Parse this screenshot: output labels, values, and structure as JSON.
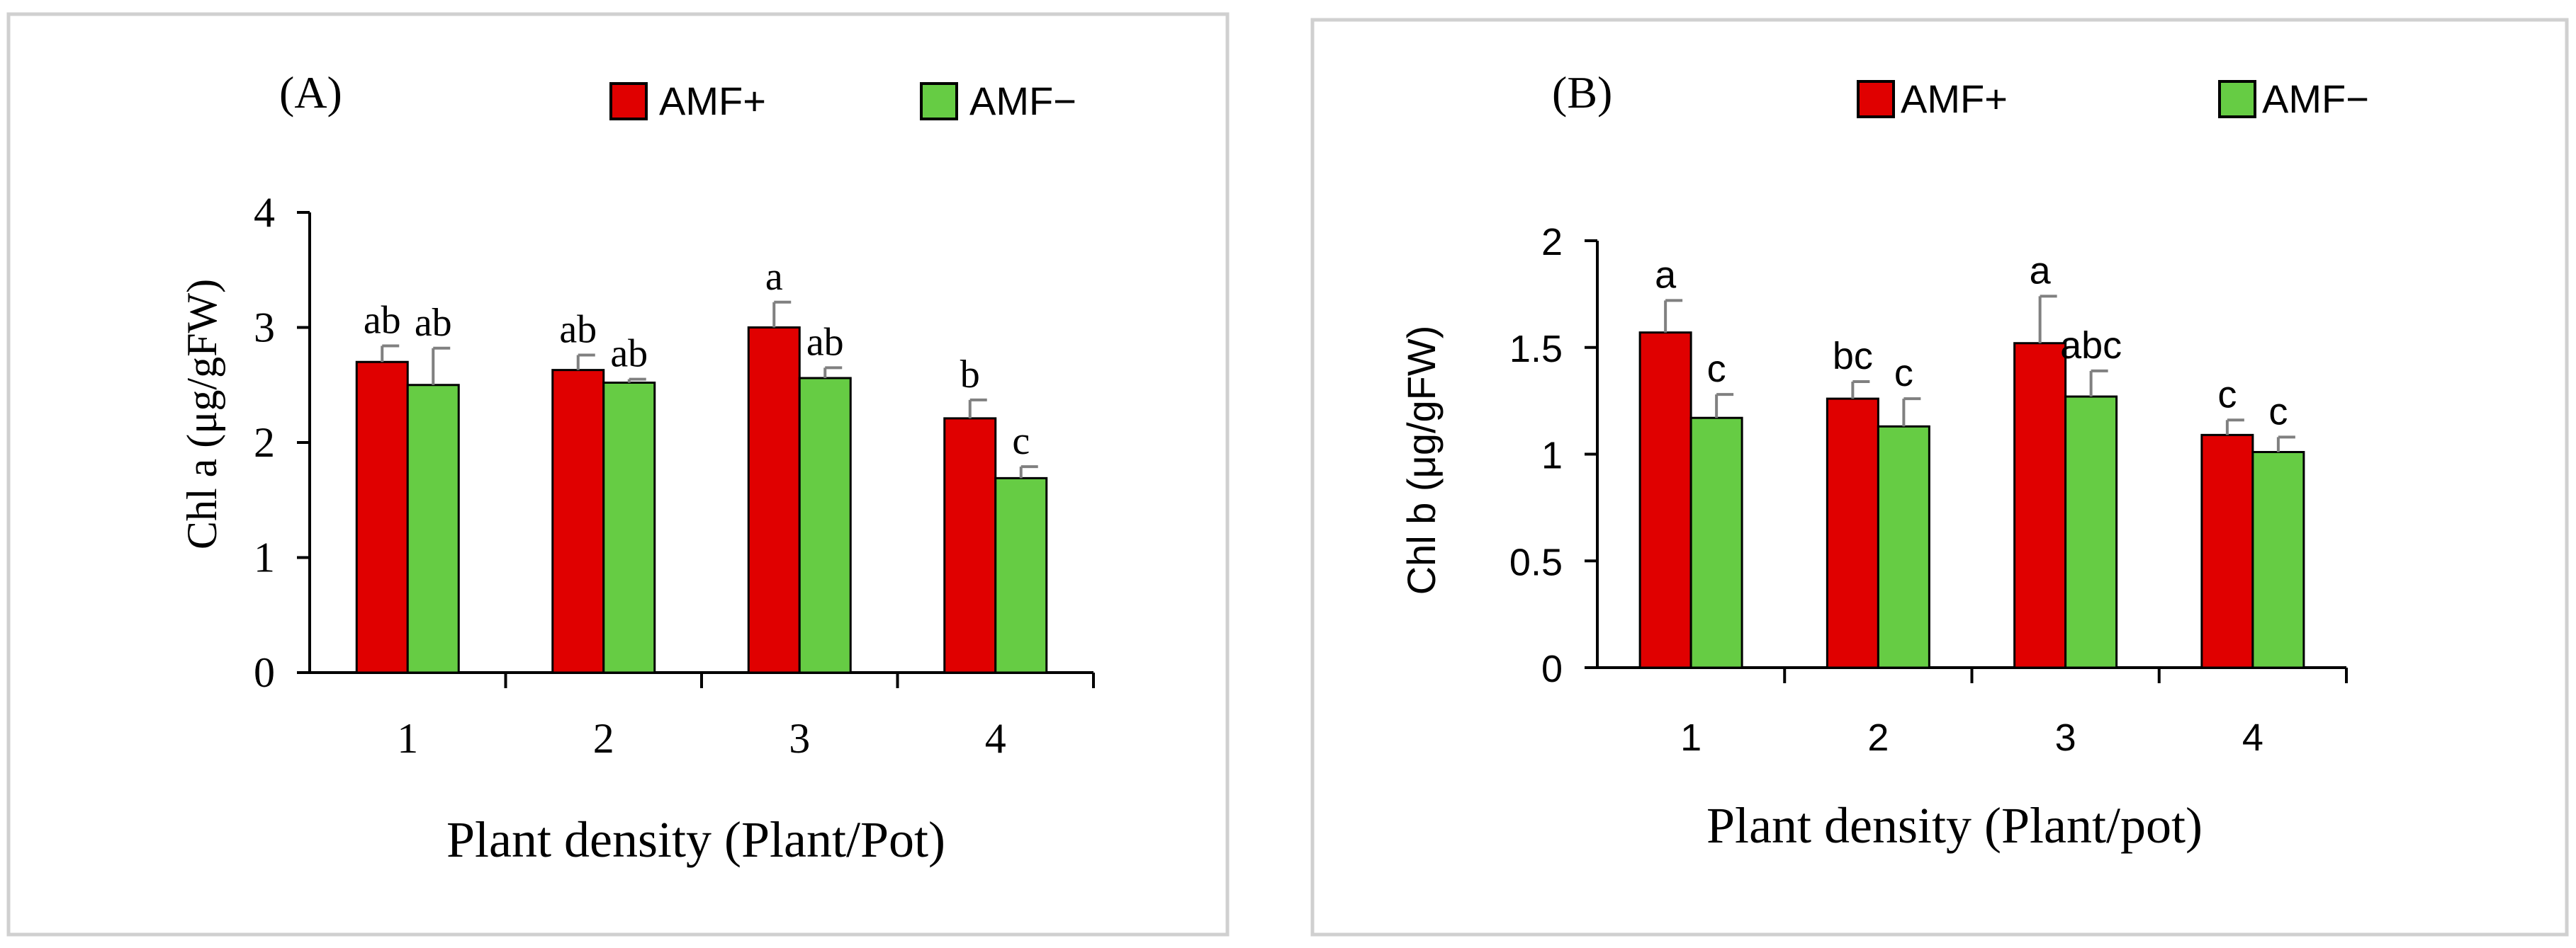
{
  "colors": {
    "amf_plus": "#E00000",
    "amf_minus": "#66CC44",
    "axis": "#000000",
    "error_bar": "#808080",
    "frame": "#D0D0D0"
  },
  "chart_data": [
    {
      "type": "bar",
      "panel_label": "(A)",
      "xlabel": "Plant density (Plant/Pot)",
      "ylabel": "Chl a (μg/gFW)",
      "categories": [
        "1",
        "2",
        "3",
        "4"
      ],
      "ylim": [
        0,
        4
      ],
      "yticks": [
        0,
        1,
        2,
        3,
        4
      ],
      "ytick_labels": [
        "0",
        "1",
        "2",
        "3",
        "4"
      ],
      "series": [
        {
          "name": "AMF+",
          "values": [
            2.7,
            2.63,
            3.0,
            2.21
          ],
          "errors": [
            0.14,
            0.13,
            0.22,
            0.16
          ],
          "letters": [
            "ab",
            "ab",
            "a",
            "b"
          ]
        },
        {
          "name": "AMF−",
          "values": [
            2.5,
            2.52,
            2.56,
            1.69
          ],
          "errors": [
            0.32,
            0.03,
            0.09,
            0.1
          ],
          "letters": [
            "ab",
            "ab",
            "ab",
            "c"
          ]
        }
      ]
    },
    {
      "type": "bar",
      "panel_label": "(B)",
      "xlabel": "Plant density (Plant/pot)",
      "ylabel": "Chl b (μg/gFW)",
      "categories": [
        "1",
        "2",
        "3",
        "4"
      ],
      "ylim": [
        0,
        2
      ],
      "yticks": [
        0,
        0.5,
        1,
        1.5,
        2
      ],
      "ytick_labels": [
        "0",
        "0.5",
        "1",
        "1.5",
        "2"
      ],
      "series": [
        {
          "name": "AMF+",
          "values": [
            1.57,
            1.26,
            1.52,
            1.09
          ],
          "errors": [
            0.15,
            0.08,
            0.22,
            0.07
          ],
          "letters": [
            "a",
            "bc",
            "a",
            "c"
          ]
        },
        {
          "name": "AMF−",
          "values": [
            1.17,
            1.13,
            1.27,
            1.01
          ],
          "errors": [
            0.11,
            0.13,
            0.12,
            0.07
          ],
          "letters": [
            "c",
            "c",
            "abc",
            "c"
          ]
        }
      ]
    }
  ]
}
